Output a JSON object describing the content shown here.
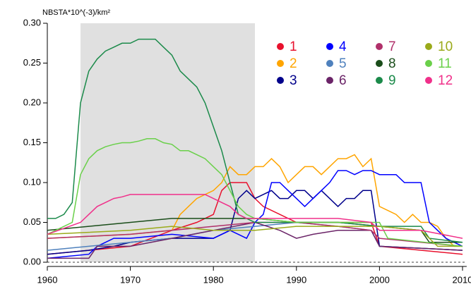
{
  "chart_data": {
    "type": "line",
    "y_label": "NBSTA*10^(-3)/km²",
    "xlim": [
      1960,
      2010.5
    ],
    "ylim": [
      0,
      0.3
    ],
    "xticks": [
      1960,
      1970,
      1980,
      1990,
      2000,
      2010
    ],
    "yticks": [
      {
        "value": 0,
        "label": "0.00"
      },
      0.05,
      {
        "value": 0.1,
        "label": "0.10"
      },
      0.15,
      {
        "value": 0.2,
        "label": "0.20"
      },
      0.25,
      {
        "value": 0.3,
        "label": "0.30"
      }
    ],
    "shaded_region": [
      1964,
      1985
    ],
    "shade_color": "#e0e0e0",
    "series": [
      {
        "name": "1",
        "color": "#e8112d",
        "x": [
          1960,
          1970,
          1975,
          1978,
          1980,
          1981,
          1982,
          1983,
          1984,
          1985,
          1986,
          1988,
          1990,
          1995,
          1999,
          2000,
          2010
        ],
        "values": [
          0.01,
          0.02,
          0.04,
          0.05,
          0.06,
          0.09,
          0.1,
          0.1,
          0.1,
          0.08,
          0.07,
          0.06,
          0.05,
          0.05,
          0.05,
          0.02,
          0.01
        ]
      },
      {
        "name": "2",
        "color": "#ffa500",
        "x": [
          1960,
          1970,
          1975,
          1976,
          1977,
          1978,
          1979,
          1980,
          1981,
          1982,
          1983,
          1984,
          1985,
          1986,
          1987,
          1988,
          1989,
          1990,
          1991,
          1992,
          1993,
          1994,
          1995,
          1996,
          1997,
          1998,
          1999,
          2000,
          2001,
          2002,
          2003,
          2004,
          2005,
          2006,
          2007,
          2008,
          2009,
          2010
        ],
        "values": [
          0.03,
          0.035,
          0.04,
          0.06,
          0.07,
          0.08,
          0.085,
          0.09,
          0.1,
          0.12,
          0.11,
          0.11,
          0.12,
          0.12,
          0.13,
          0.12,
          0.1,
          0.11,
          0.12,
          0.12,
          0.11,
          0.12,
          0.13,
          0.13,
          0.135,
          0.12,
          0.13,
          0.07,
          0.065,
          0.06,
          0.05,
          0.06,
          0.05,
          0.05,
          0.045,
          0.03,
          0.02,
          0.02
        ]
      },
      {
        "name": "3",
        "color": "#00008b",
        "x": [
          1960,
          1965,
          1968,
          1970,
          1975,
          1980,
          1982,
          1983,
          1984,
          1985,
          1986,
          1987,
          1988,
          1989,
          1990,
          1991,
          1992,
          1993,
          1994,
          1995,
          1996,
          1997,
          1998,
          1999,
          2000,
          2010
        ],
        "values": [
          0.01,
          0.015,
          0.02,
          0.025,
          0.03,
          0.03,
          0.04,
          0.08,
          0.09,
          0.08,
          0.085,
          0.09,
          0.08,
          0.08,
          0.09,
          0.09,
          0.08,
          0.09,
          0.08,
          0.07,
          0.08,
          0.08,
          0.09,
          0.09,
          0.02,
          0.015
        ]
      },
      {
        "name": "4",
        "color": "#0000ff",
        "x": [
          1960,
          1965,
          1966,
          1967,
          1968,
          1970,
          1975,
          1980,
          1982,
          1983,
          1984,
          1985,
          1986,
          1987,
          1988,
          1989,
          1990,
          1991,
          1992,
          1993,
          1994,
          1995,
          1996,
          1997,
          1998,
          1999,
          2000,
          2001,
          2002,
          2003,
          2004,
          2005,
          2006,
          2007,
          2008,
          2009,
          2010
        ],
        "values": [
          0.005,
          0.01,
          0.02,
          0.025,
          0.03,
          0.03,
          0.035,
          0.03,
          0.04,
          0.035,
          0.03,
          0.05,
          0.06,
          0.1,
          0.1,
          0.09,
          0.08,
          0.07,
          0.08,
          0.09,
          0.1,
          0.115,
          0.115,
          0.11,
          0.115,
          0.115,
          0.11,
          0.11,
          0.11,
          0.1,
          0.1,
          0.1,
          0.05,
          0.04,
          0.03,
          0.025,
          0.02
        ]
      },
      {
        "name": "5",
        "color": "#4f81bd",
        "x": [
          1960,
          1965,
          1970,
          1975,
          1980,
          1985,
          1990,
          1995,
          1999,
          2000,
          2010
        ],
        "values": [
          0.015,
          0.02,
          0.025,
          0.03,
          0.04,
          0.045,
          0.05,
          0.045,
          0.04,
          0.02,
          0.015
        ]
      },
      {
        "name": "6",
        "color": "#6b2468",
        "x": [
          1960,
          1965,
          1966,
          1970,
          1975,
          1980,
          1985,
          1988,
          1990,
          1992,
          1995,
          1999,
          2000,
          2010
        ],
        "values": [
          0.005,
          0.005,
          0.02,
          0.02,
          0.03,
          0.04,
          0.05,
          0.04,
          0.03,
          0.035,
          0.04,
          0.04,
          0.02,
          0.015
        ]
      },
      {
        "name": "7",
        "color": "#b0306a",
        "x": [
          1960,
          1970,
          1980,
          1985,
          1990,
          1995,
          1999,
          2000,
          2010
        ],
        "values": [
          0.03,
          0.035,
          0.045,
          0.05,
          0.05,
          0.045,
          0.04,
          0.03,
          0.02
        ]
      },
      {
        "name": "8",
        "color": "#1a4d1a",
        "x": [
          1960,
          1965,
          1970,
          1975,
          1980,
          1985,
          1990,
          1995,
          2000,
          2005,
          2006,
          2010
        ],
        "values": [
          0.04,
          0.045,
          0.05,
          0.055,
          0.055,
          0.055,
          0.05,
          0.05,
          0.045,
          0.04,
          0.025,
          0.025
        ]
      },
      {
        "name": "9",
        "color": "#1b8a4a",
        "x": [
          1960,
          1961,
          1962,
          1963,
          1964,
          1965,
          1966,
          1967,
          1968,
          1969,
          1970,
          1971,
          1972,
          1973,
          1974,
          1975,
          1976,
          1977,
          1978,
          1979,
          1980,
          1981,
          1982,
          1983,
          1984,
          1985,
          1990,
          1995,
          2000,
          2005,
          2006,
          2010
        ],
        "values": [
          0.055,
          0.055,
          0.06,
          0.075,
          0.2,
          0.24,
          0.255,
          0.265,
          0.27,
          0.275,
          0.275,
          0.28,
          0.28,
          0.28,
          0.27,
          0.26,
          0.24,
          0.23,
          0.22,
          0.2,
          0.17,
          0.14,
          0.1,
          0.06,
          0.055,
          0.05,
          0.05,
          0.05,
          0.045,
          0.045,
          0.03,
          0.025
        ]
      },
      {
        "name": "10",
        "color": "#9aaa1a",
        "x": [
          1960,
          1970,
          1975,
          1980,
          1985,
          1990,
          1995,
          2000,
          2005,
          2007,
          2010
        ],
        "values": [
          0.035,
          0.04,
          0.045,
          0.04,
          0.04,
          0.045,
          0.045,
          0.045,
          0.04,
          0.02,
          0.02
        ]
      },
      {
        "name": "11",
        "color": "#6ad04a",
        "x": [
          1960,
          1963,
          1964,
          1965,
          1966,
          1967,
          1968,
          1969,
          1970,
          1971,
          1972,
          1973,
          1974,
          1975,
          1976,
          1977,
          1978,
          1979,
          1980,
          1981,
          1982,
          1983,
          1984,
          1985,
          1990,
          1995,
          2000,
          2001,
          2010
        ],
        "values": [
          0.035,
          0.05,
          0.11,
          0.13,
          0.14,
          0.145,
          0.148,
          0.15,
          0.15,
          0.152,
          0.155,
          0.155,
          0.15,
          0.148,
          0.14,
          0.14,
          0.135,
          0.13,
          0.12,
          0.11,
          0.09,
          0.07,
          0.06,
          0.055,
          0.05,
          0.05,
          0.05,
          0.03,
          0.02
        ]
      },
      {
        "name": "12",
        "color": "#f0308a",
        "x": [
          1960,
          1964,
          1965,
          1966,
          1967,
          1968,
          1969,
          1970,
          1979,
          1980,
          1981,
          1982,
          1983,
          1984,
          1985,
          1995,
          1999,
          2000,
          2005,
          2010
        ],
        "values": [
          0.035,
          0.05,
          0.06,
          0.07,
          0.075,
          0.08,
          0.082,
          0.085,
          0.085,
          0.08,
          0.075,
          0.07,
          0.06,
          0.055,
          0.055,
          0.055,
          0.05,
          0.04,
          0.04,
          0.03
        ]
      }
    ]
  }
}
